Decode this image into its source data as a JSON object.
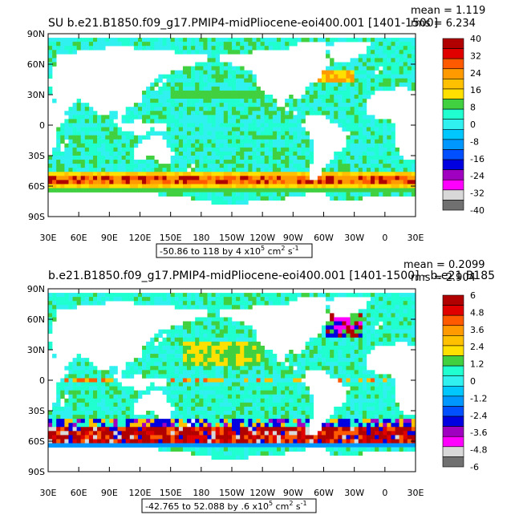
{
  "chart_data": [
    {
      "type": "heatmap",
      "title": "SU  b.e21.B1850.f09_g17.PMIP4-midPliocene-eoi400.001  [1401-1500]",
      "stats": [
        "mean = 1.119",
        "rms = 6.234"
      ],
      "range_label": "-50.86 to 118 by 4 x10",
      "range_exp": "5",
      "range_units": " cm",
      "x_ticks": [
        "30E",
        "60E",
        "90E",
        "120E",
        "150E",
        "180",
        "150W",
        "120W",
        "90W",
        "60W",
        "30W",
        "0",
        "30E"
      ],
      "y_ticks": [
        "90N",
        "60N",
        "30N",
        "0",
        "30S",
        "60S",
        "90S"
      ],
      "colorbar": {
        "labels": [
          "40",
          "32",
          "24",
          "16",
          "8",
          "0",
          "-8",
          "-16",
          "-24",
          "-32",
          "-40"
        ],
        "colors": [
          "#b00000",
          "#e00000",
          "#ff5a00",
          "#ff9a00",
          "#ffc000",
          "#ffe000",
          "#40d040",
          "#20ffd0",
          "#30f0f0",
          "#00c8ff",
          "#0098ff",
          "#0050ff",
          "#0000e0",
          "#a000c0",
          "#ff00ff",
          "#d8d8d8",
          "#707070"
        ]
      },
      "field": "zonal_velocity_anomaly_pattern_A"
    },
    {
      "type": "heatmap",
      "title": "b.e21.B1850.f09_g17.PMIP4-midPliocene-eoi400.001  [1401-1500] - b.e21.B185",
      "stats": [
        "mean = 0.2099",
        "rms = 2.904"
      ],
      "range_label": "-42.765 to 52.088 by .6 x10",
      "range_exp": "5",
      "range_units": " cm",
      "x_ticks": [
        "30E",
        "60E",
        "90E",
        "120E",
        "150E",
        "180",
        "150W",
        "120W",
        "90W",
        "60W",
        "30W",
        "0",
        "30E"
      ],
      "y_ticks": [
        "90N",
        "60N",
        "30N",
        "0",
        "30S",
        "60S",
        "90S"
      ],
      "colorbar": {
        "labels": [
          "6",
          "4.8",
          "3.6",
          "2.4",
          "1.2",
          "0",
          "-1.2",
          "-2.4",
          "-3.6",
          "-4.8",
          "-6"
        ],
        "colors": [
          "#b00000",
          "#e00000",
          "#ff5a00",
          "#ff9a00",
          "#ffc000",
          "#ffe000",
          "#40d040",
          "#20ffd0",
          "#30f0f0",
          "#00c8ff",
          "#0098ff",
          "#0050ff",
          "#0000e0",
          "#a000c0",
          "#ff00ff",
          "#d8d8d8",
          "#707070"
        ]
      },
      "field": "zonal_velocity_difference_pattern_B"
    }
  ]
}
